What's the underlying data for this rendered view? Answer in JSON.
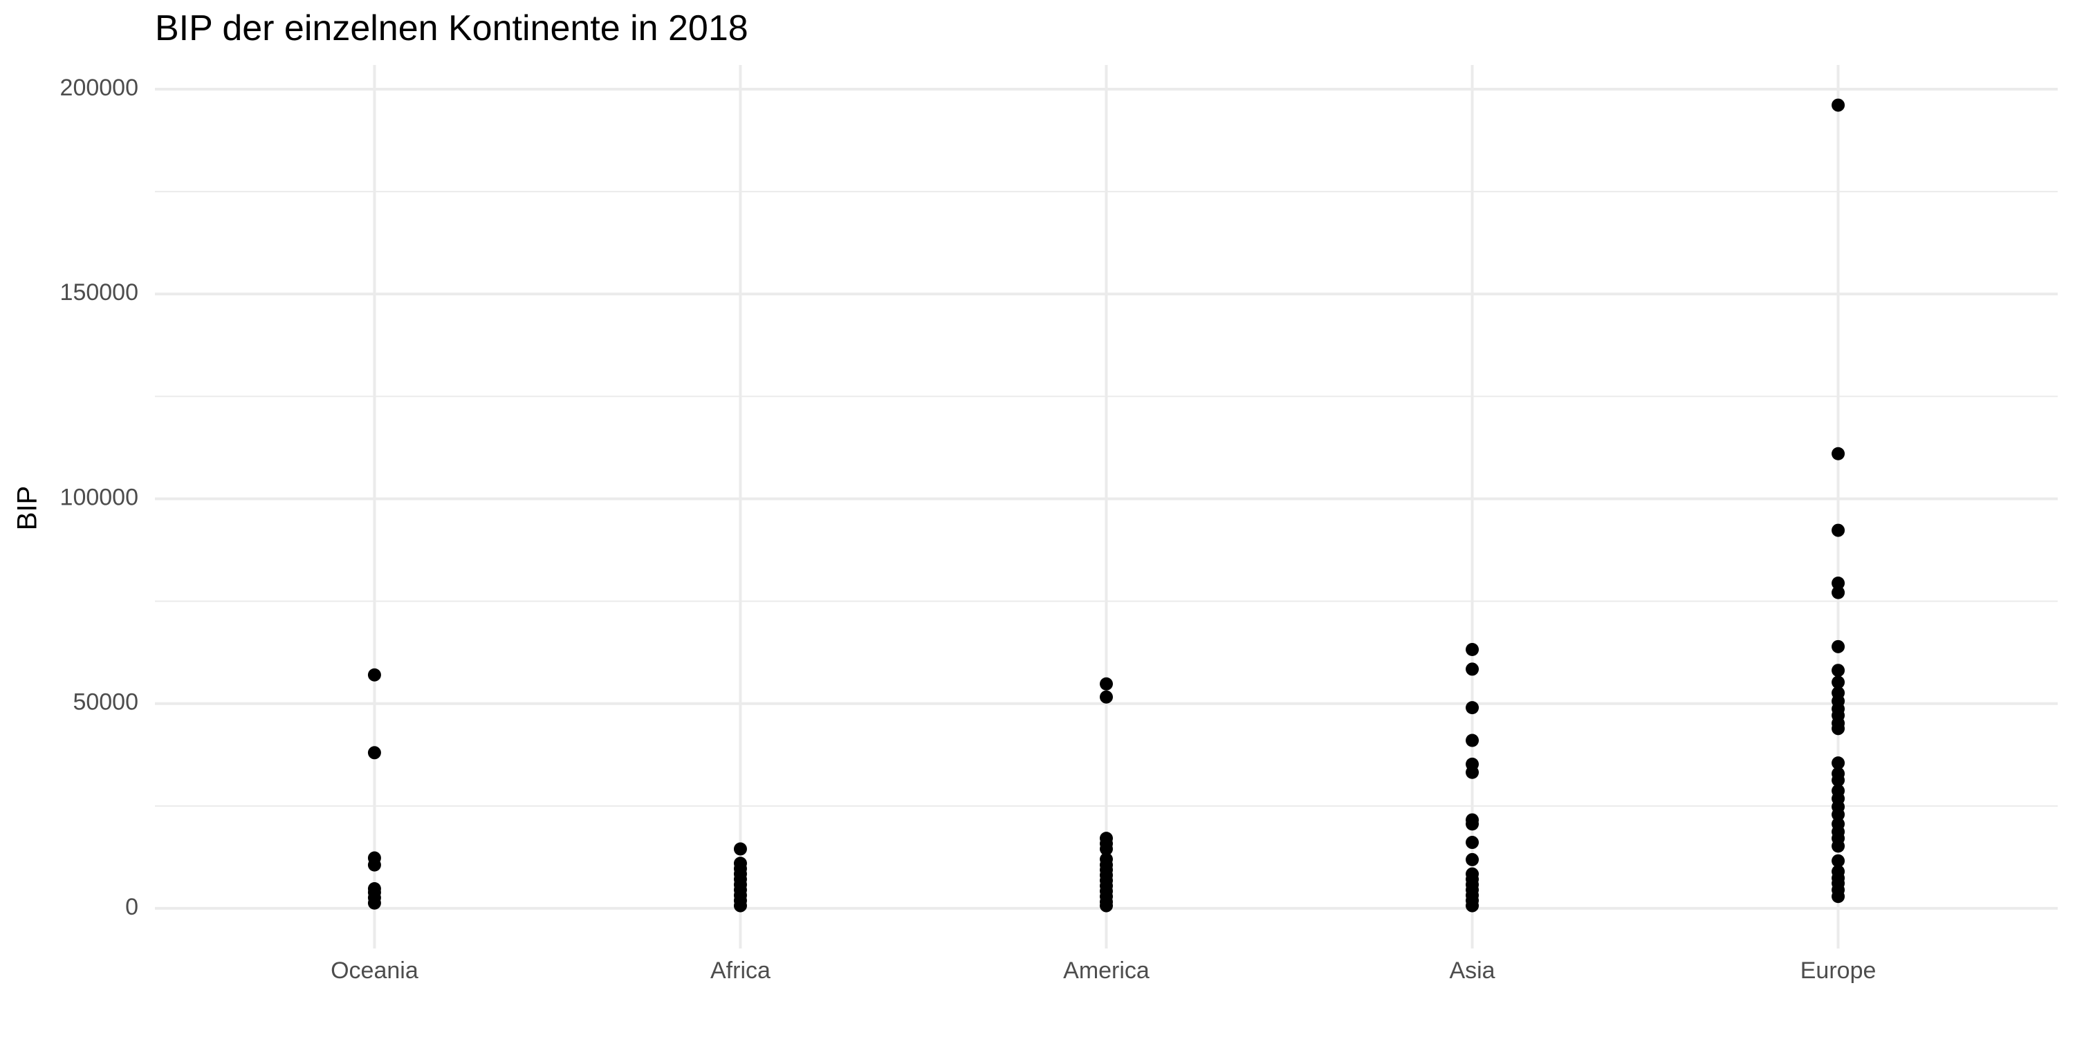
{
  "chart_data": {
    "type": "strip",
    "title": "BIP der einzelnen Kontinente in 2018",
    "y_label": "BIP",
    "categories": [
      "Oceania",
      "Africa",
      "America",
      "Asia",
      "Europe"
    ],
    "values": [
      [
        57000,
        38000,
        12300,
        10600,
        4800,
        3900,
        2600,
        1300
      ],
      [
        14500,
        11000,
        9700,
        8400,
        7100,
        5800,
        4500,
        3200,
        1900,
        650
      ],
      [
        54800,
        51600,
        17100,
        15800,
        14500,
        12000,
        10600,
        9400,
        8100,
        6800,
        5500,
        4200,
        2900,
        1600,
        650
      ],
      [
        63200,
        58400,
        49000,
        41000,
        35200,
        33200,
        21600,
        20600,
        16100,
        11900,
        8400,
        7100,
        5800,
        4500,
        3200,
        1900,
        650
      ],
      [
        196100,
        111000,
        92300,
        79400,
        77100,
        63900,
        58100,
        55200,
        52600,
        50600,
        48700,
        47100,
        45200,
        43900,
        35500,
        32900,
        31300,
        28700,
        26800,
        24800,
        22900,
        20600,
        18700,
        17100,
        15200,
        11600,
        9000,
        7400,
        6100,
        4500,
        2900
      ]
    ],
    "color": "#000000",
    "ylim": [
      -9800,
      205900
    ],
    "yticks": [
      0,
      50000,
      100000,
      150000,
      200000
    ],
    "y_minor_grid": [
      25000,
      75000,
      125000,
      175000
    ],
    "grid": true
  }
}
